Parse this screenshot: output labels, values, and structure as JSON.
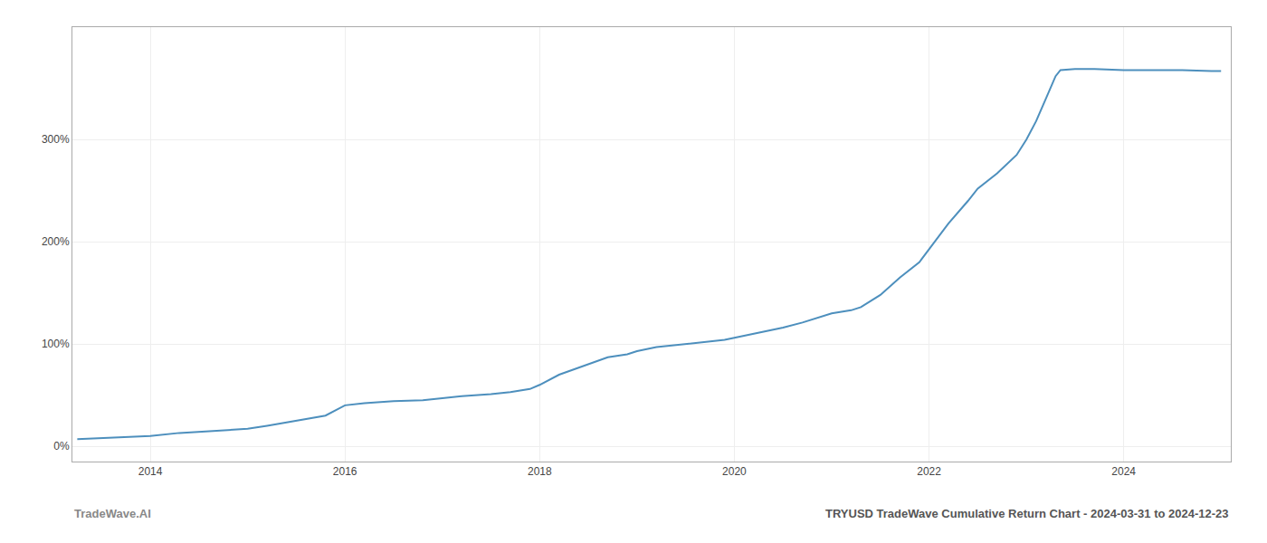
{
  "chart_data": {
    "type": "line",
    "title": "TRYUSD TradeWave Cumulative Return Chart - 2024-03-31 to 2024-12-23",
    "annotations": [
      "TradeWave.AI"
    ],
    "x": [
      2013.25,
      2013.5,
      2014.0,
      2014.3,
      2014.7,
      2015.0,
      2015.2,
      2015.5,
      2015.8,
      2016.0,
      2016.2,
      2016.5,
      2016.8,
      2017.0,
      2017.2,
      2017.5,
      2017.7,
      2017.9,
      2018.0,
      2018.2,
      2018.5,
      2018.7,
      2018.9,
      2019.0,
      2019.2,
      2019.5,
      2019.7,
      2019.9,
      2020.0,
      2020.2,
      2020.5,
      2020.7,
      2020.9,
      2021.0,
      2021.2,
      2021.3,
      2021.5,
      2021.7,
      2021.9,
      2022.0,
      2022.2,
      2022.4,
      2022.5,
      2022.7,
      2022.9,
      2023.0,
      2023.1,
      2023.2,
      2023.3,
      2023.35,
      2023.5,
      2023.7,
      2024.0,
      2024.3,
      2024.6,
      2024.9,
      2025.0
    ],
    "values": [
      7,
      8,
      10,
      13,
      15,
      17,
      20,
      25,
      30,
      40,
      42,
      44,
      45,
      47,
      49,
      51,
      53,
      56,
      60,
      70,
      80,
      87,
      90,
      93,
      97,
      100,
      102,
      104,
      106,
      110,
      116,
      121,
      127,
      130,
      133,
      136,
      148,
      165,
      180,
      193,
      218,
      240,
      252,
      267,
      285,
      300,
      318,
      340,
      362,
      368,
      369,
      369,
      368,
      368,
      368,
      367,
      367
    ],
    "color": "#4d8fbd",
    "xlim": [
      2013.2,
      2025.1
    ],
    "xticks": [
      2014,
      2016,
      2018,
      2020,
      2022,
      2024
    ],
    "ylim": [
      -15,
      410
    ],
    "yticks": [
      {
        "value": 0,
        "label": "0%"
      },
      {
        "value": 100,
        "label": "100%"
      },
      {
        "value": 200,
        "label": "200%"
      },
      {
        "value": 300,
        "label": "300%"
      }
    ],
    "grid": true
  }
}
